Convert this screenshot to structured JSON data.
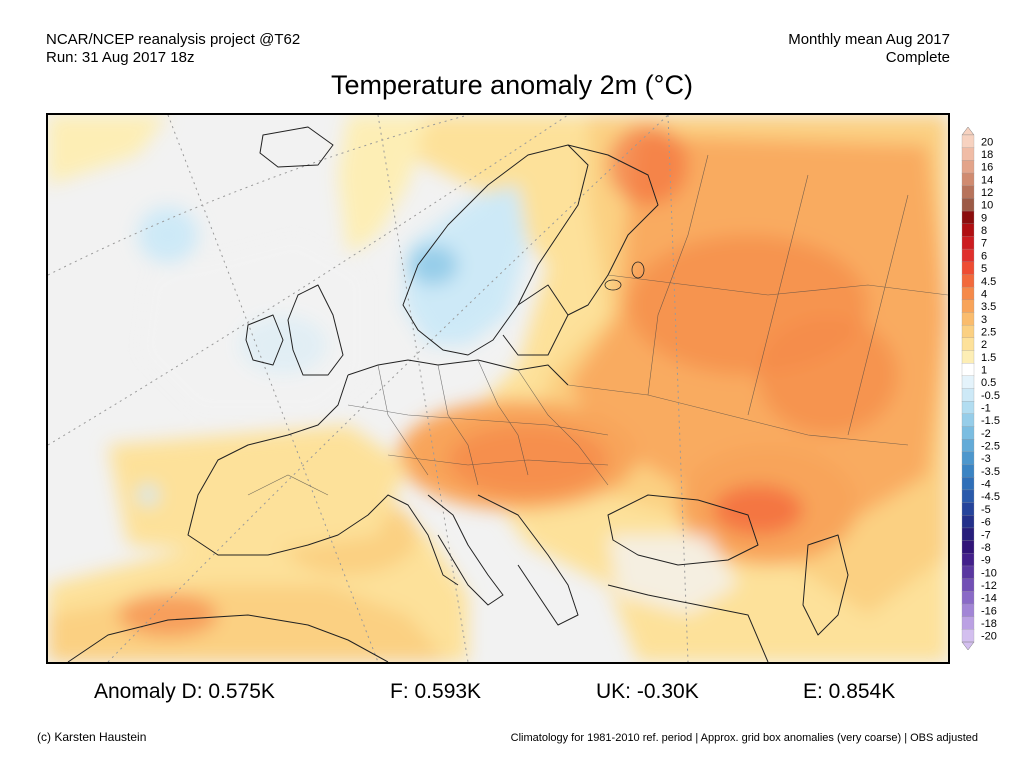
{
  "header": {
    "source_line": "NCAR/NCEP reanalysis project @T62",
    "run_line": "Run: 31 Aug 2017 18z",
    "period_line": "Monthly mean Aug 2017",
    "status_line": "Complete"
  },
  "title": "Temperature anomaly 2m (°C)",
  "colorbar": {
    "labels": [
      "20",
      "18",
      "16",
      "14",
      "12",
      "10",
      "9",
      "8",
      "7",
      "6",
      "5",
      "4.5",
      "4",
      "3.5",
      "3",
      "2.5",
      "2",
      "1.5",
      "1",
      "0.5",
      "-0.5",
      "-1",
      "-1.5",
      "-2",
      "-2.5",
      "-3",
      "-3.5",
      "-4",
      "-4.5",
      "-5",
      "-6",
      "-7",
      "-8",
      "-9",
      "-10",
      "-12",
      "-14",
      "-16",
      "-18",
      "-20"
    ],
    "colors": [
      "#f7d2c0",
      "#f0bca6",
      "#e3a48a",
      "#d08b70",
      "#b7735b",
      "#9c5a46",
      "#8b0d0d",
      "#b00f12",
      "#cc1c20",
      "#e0302d",
      "#ee4c33",
      "#f26a3c",
      "#f58a4a",
      "#f8a45a",
      "#fabc6d",
      "#fbd082",
      "#fde19a",
      "#fdeeb5",
      "#ffffff",
      "#e4f3fb",
      "#cde9f7",
      "#b2ddf1",
      "#96cde9",
      "#7bbde1",
      "#63abd8",
      "#4d97cd",
      "#3b84c3",
      "#2f6fb8",
      "#2a5aab",
      "#25449b",
      "#23308a",
      "#271e7b",
      "#311478",
      "#43208b",
      "#5a37a0",
      "#7250b5",
      "#8a6ac7",
      "#a285d6",
      "#bba1e3",
      "#d3bfef"
    ]
  },
  "stats": {
    "anomaly_label": "Anomaly D: 0.575K",
    "france": "F: 0.593K",
    "uk": "UK: -0.30K",
    "europe": "E: 0.854K"
  },
  "footer": {
    "credit": "(c) Karsten Haustein",
    "note": "Climatology for 1981-2010 ref. period | Approx. grid box anomalies (very coarse) | OBS adjusted"
  }
}
